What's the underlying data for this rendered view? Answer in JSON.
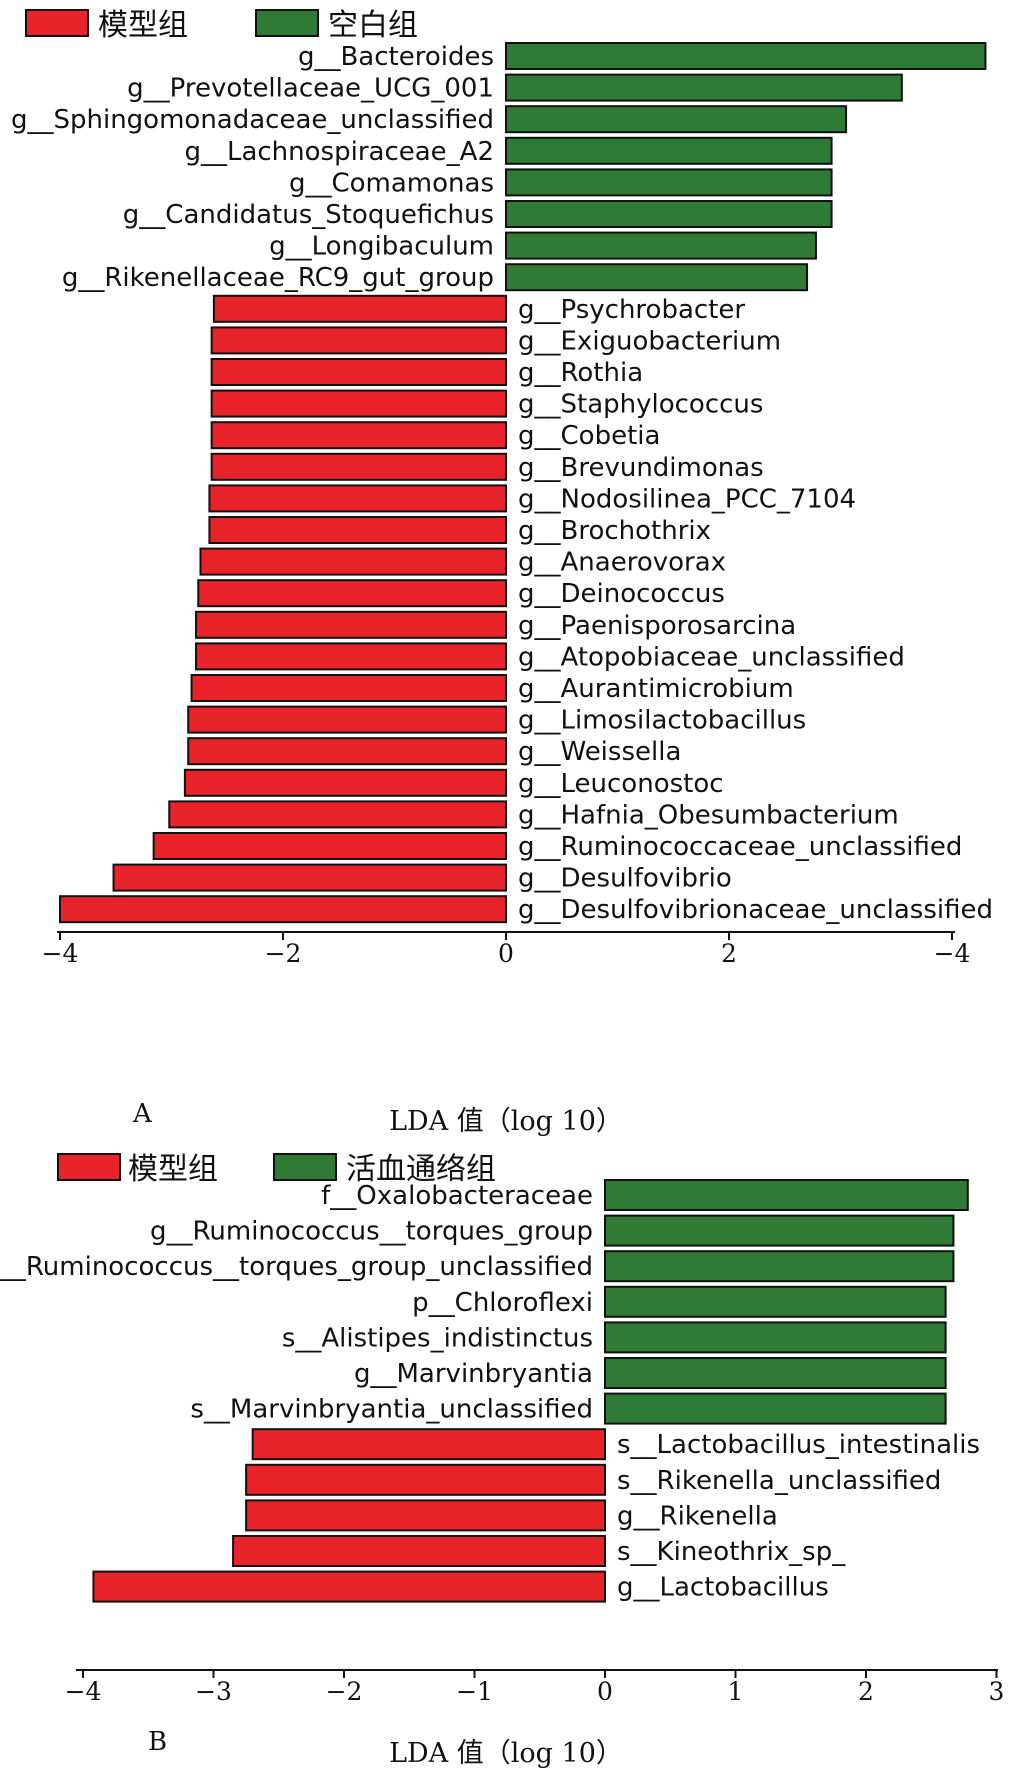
{
  "chart_data": [
    {
      "type": "bar",
      "panel_label": "A",
      "legend": [
        {
          "label": "模型组",
          "color": "#e8232a"
        },
        {
          "label": "空白组",
          "color": "#2f7a35"
        }
      ],
      "xlabel": "LDA 值（log 10）",
      "xticks": [
        "−4",
        "−2",
        "0",
        "2",
        "−4"
      ],
      "xlim": [
        -4,
        4
      ],
      "bars": [
        {
          "name": "g__Bacteroides",
          "value": 4.3,
          "group": "空白组"
        },
        {
          "name": "g__Prevotellaceae_UCG_001",
          "value": 3.55,
          "group": "空白组"
        },
        {
          "name": "g__Sphingomonadaceae_unclassified",
          "value": 3.05,
          "group": "空白组"
        },
        {
          "name": "g__Lachnospiraceae_A2",
          "value": 2.92,
          "group": "空白组"
        },
        {
          "name": "g__Comamonas",
          "value": 2.92,
          "group": "空白组"
        },
        {
          "name": "g__Candidatus_Stoquefichus",
          "value": 2.92,
          "group": "空白组"
        },
        {
          "name": "g__Longibaculum",
          "value": 2.78,
          "group": "空白组"
        },
        {
          "name": "g__Rikenellaceae_RC9_gut_group",
          "value": 2.7,
          "group": "空白组"
        },
        {
          "name": "g__Psychrobacter",
          "value": -2.62,
          "group": "模型组"
        },
        {
          "name": "g__Exiguobacterium",
          "value": -2.64,
          "group": "模型组"
        },
        {
          "name": "g__Rothia",
          "value": -2.64,
          "group": "模型组"
        },
        {
          "name": "g__Staphylococcus",
          "value": -2.64,
          "group": "模型组"
        },
        {
          "name": "g__Cobetia",
          "value": -2.64,
          "group": "模型组"
        },
        {
          "name": "g__Brevundimonas",
          "value": -2.64,
          "group": "模型组"
        },
        {
          "name": "g__Nodosilinea_PCC_7104",
          "value": -2.66,
          "group": "模型组"
        },
        {
          "name": "g__Brochothrix",
          "value": -2.66,
          "group": "模型组"
        },
        {
          "name": "g__Anaerovorax",
          "value": -2.74,
          "group": "模型组"
        },
        {
          "name": "g__Deinococcus",
          "value": -2.76,
          "group": "模型组"
        },
        {
          "name": "g__Paenisporosarcina",
          "value": -2.78,
          "group": "模型组"
        },
        {
          "name": "g__Atopobiaceae_unclassified",
          "value": -2.78,
          "group": "模型组"
        },
        {
          "name": "g__Aurantimicrobium",
          "value": -2.82,
          "group": "模型组"
        },
        {
          "name": "g__Limosilactobacillus",
          "value": -2.85,
          "group": "模型组"
        },
        {
          "name": "g__Weissella",
          "value": -2.85,
          "group": "模型组"
        },
        {
          "name": "g__Leuconostoc",
          "value": -2.88,
          "group": "模型组"
        },
        {
          "name": "g__Hafnia_Obesumbacterium",
          "value": -3.02,
          "group": "模型组"
        },
        {
          "name": "g__Ruminococcaceae_unclassified",
          "value": -3.16,
          "group": "模型组"
        },
        {
          "name": "g__Desulfovibrio",
          "value": -3.52,
          "group": "模型组"
        },
        {
          "name": "g__Desulfovibrionaceae_unclassified",
          "value": -4.0,
          "group": "模型组"
        }
      ]
    },
    {
      "type": "bar",
      "panel_label": "B",
      "legend": [
        {
          "label": "模型组",
          "color": "#e8232a"
        },
        {
          "label": "活血通络组",
          "color": "#2f7a35"
        }
      ],
      "xlabel": "LDA 值（log 10）",
      "xticks": [
        "−4",
        "−3",
        "−2",
        "−1",
        "0",
        "1",
        "2",
        "3"
      ],
      "xlim": [
        -4,
        3
      ],
      "bars": [
        {
          "name": "f__Oxalobacteraceae",
          "value": 2.78,
          "group": "活血通络组"
        },
        {
          "name": "g__Ruminococcus__torques_group",
          "value": 2.67,
          "group": "活血通络组"
        },
        {
          "name": "s__Ruminococcus__torques_group_unclassified",
          "value": 2.67,
          "group": "活血通络组"
        },
        {
          "name": "p__Chloroflexi",
          "value": 2.61,
          "group": "活血通络组"
        },
        {
          "name": "s__Alistipes_indistinctus",
          "value": 2.61,
          "group": "活血通络组"
        },
        {
          "name": "g__Marvinbryantia",
          "value": 2.61,
          "group": "活血通络组"
        },
        {
          "name": "s__Marvinbryantia_unclassified",
          "value": 2.61,
          "group": "活血通络组"
        },
        {
          "name": "s__Lactobacillus_intestinalis",
          "value": -2.7,
          "group": "模型组"
        },
        {
          "name": "s__Rikenella_unclassified",
          "value": -2.75,
          "group": "模型组"
        },
        {
          "name": "g__Rikenella",
          "value": -2.75,
          "group": "模型组"
        },
        {
          "name": "s__Kineothrix_sp_",
          "value": -2.85,
          "group": "模型组"
        },
        {
          "name": "g__Lactobacillus",
          "value": -3.92,
          "group": "模型组"
        }
      ]
    }
  ]
}
